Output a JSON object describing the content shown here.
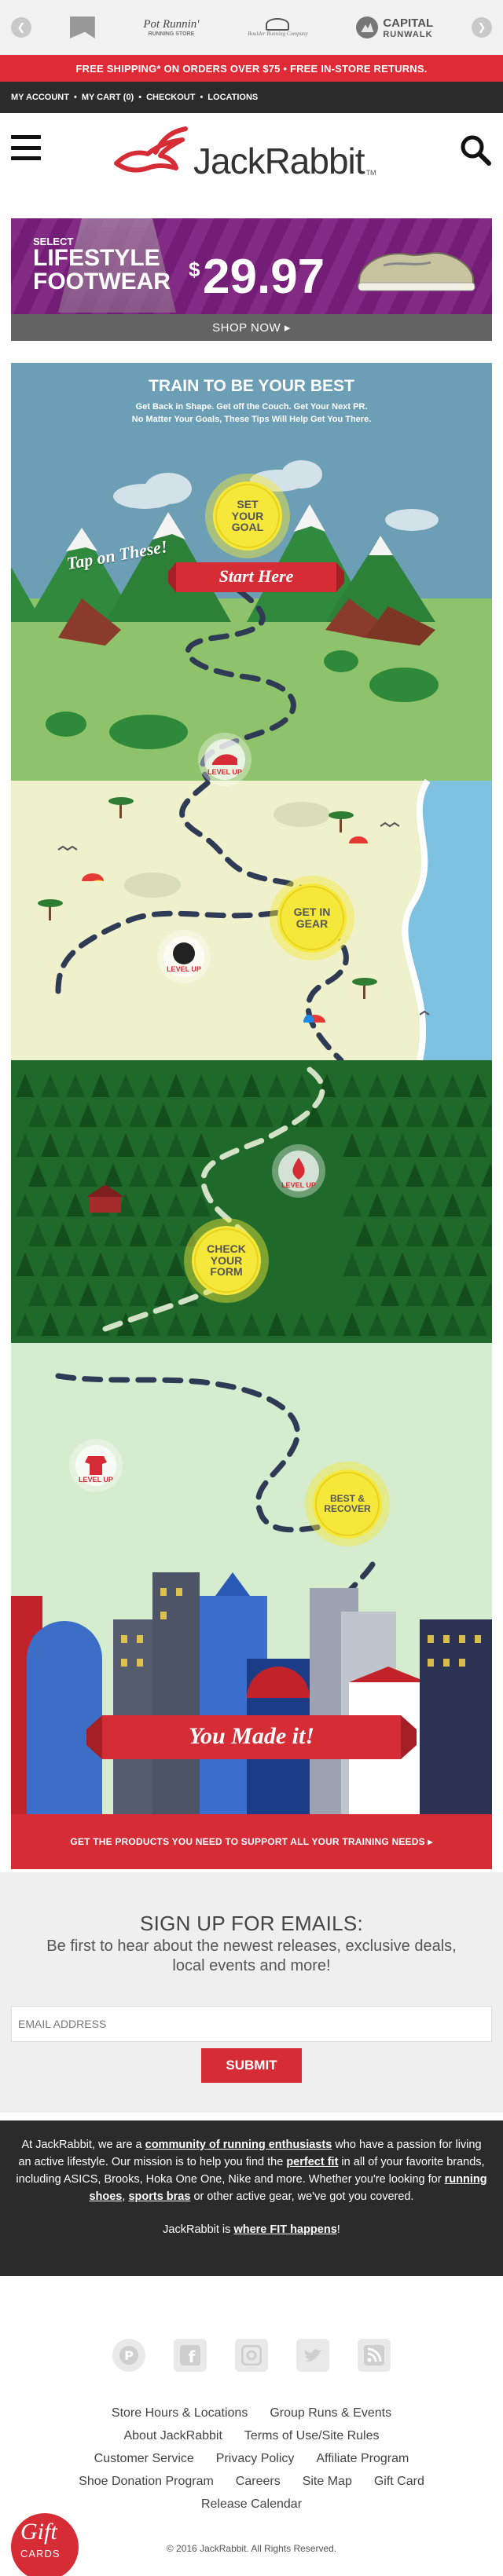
{
  "brands": {
    "prev": "❮",
    "next": "❯",
    "logos": [
      {
        "name": "Boulder Running Company",
        "main": "",
        "sub": ""
      },
      {
        "name": "Potomac River Running Store",
        "main": "Pot Runnin'",
        "sub": "RUNNING STORE"
      },
      {
        "name": "Boulder Running Company",
        "main": "",
        "sub": "Boulder Running Company"
      },
      {
        "name": "Capital RunWalk",
        "main": "CAPITAL",
        "sub": "RUNWALK"
      }
    ]
  },
  "promo": {
    "text": "FREE SHIPPING* ON ORDERS OVER $75 • FREE IN-STORE RETURNS."
  },
  "account_bar": {
    "my_account": "MY ACCOUNT",
    "my_cart": "MY CART (0)",
    "checkout": "CHECKOUT",
    "locations": "LOCATIONS",
    "separator": "•"
  },
  "header": {
    "logo_text": "JackRabbit",
    "logo_tm": "TM"
  },
  "lifestyle_banner": {
    "select": "SELECT",
    "line1": "LIFESTYLE",
    "line2": "FOOTWEAR",
    "currency": "$",
    "price": "29.97",
    "cta": "SHOP NOW ▸"
  },
  "infographic": {
    "title": "TRAIN TO BE YOUR BEST",
    "subtitle1": "Get Back in Shape. Get off the Couch. Get Your Next PR.",
    "subtitle2": "No Matter Your Goals, These Tips Will Help Get You There.",
    "tap": "Tap on These!",
    "start_here": "Start Here",
    "set_goal": "SET YOUR GOAL",
    "get_gear": "GET IN GEAR",
    "check_form": "CHECK YOUR FORM",
    "best_recover": "BEST & RECOVER",
    "level_up": "LEVEL UP",
    "made_it": "You Made it!",
    "cta": "GET THE PRODUCTS YOU NEED TO SUPPORT ALL YOUR TRAINING NEEDS ▸",
    "colors": {
      "sky": "#6a9db5",
      "meadow": "#8fc36a",
      "beach": "#eef2cc",
      "forest": "#1f6a2a",
      "city_sky": "#d6eccd",
      "accent": "#d52c36",
      "circle": "#f5e83a"
    }
  },
  "signup": {
    "heading": "SIGN UP FOR EMAILS:",
    "body": "Be first to hear about the newest releases, exclusive deals, local events and more!",
    "placeholder": "EMAIL ADDRESS",
    "submit": "SUBMIT"
  },
  "about": {
    "p1a": "At JackRabbit, we are a ",
    "p1b": "community of running enthusiasts",
    "p1c": " who have a passion for living an active lifestyle. Our mission is to help you find the ",
    "p1d": "perfect fit",
    "p1e": " in all of your favorite brands, including ASICS, Brooks, Hoka One One, Nike and more. Whether you're looking for ",
    "p1f": "running shoes",
    "p1g": ", ",
    "p1h": "sports bras",
    "p1i": " or other active gear, we've got you covered.",
    "p2a": "JackRabbit is ",
    "p2b": "where FIT happens",
    "p2c": "!"
  },
  "footer": {
    "socials": [
      "pinterest-icon",
      "facebook-icon",
      "instagram-icon",
      "twitter-icon",
      "rss-icon"
    ],
    "links_row1": [
      "Store Hours & Locations",
      "Group Runs & Events"
    ],
    "links_row2": [
      "About JackRabbit",
      "Terms of Use/Site Rules"
    ],
    "links_row3": [
      "Customer Service",
      "Privacy Policy",
      "Affiliate Program"
    ],
    "links_row4": [
      "Shoe Donation Program",
      "Careers",
      "Site Map",
      "Gift Card"
    ],
    "links_row5": [
      "Release Calendar"
    ],
    "copyright": "© 2016 JackRabbit. All Rights Reserved.",
    "gift_badge_main": "Gift",
    "gift_badge_sub": "CARDS"
  }
}
